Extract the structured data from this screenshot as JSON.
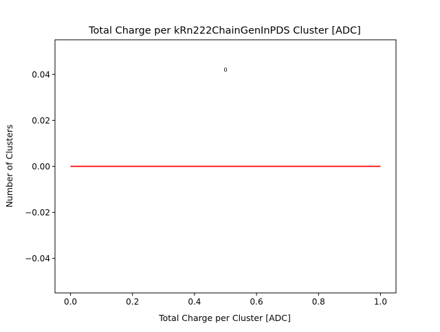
{
  "chart_data": {
    "type": "line",
    "title": "Total Charge per kRn222ChainGenInPDS Cluster [ADC]",
    "xlabel": "Total Charge per Cluster [ADC]",
    "ylabel": "Number of Clusters",
    "xlim": [
      -0.05,
      1.05
    ],
    "ylim": [
      -0.055,
      0.055
    ],
    "xticks": [
      0.0,
      0.2,
      0.4,
      0.6,
      0.8,
      1.0
    ],
    "xtick_labels": [
      "0.0",
      "0.2",
      "0.4",
      "0.6",
      "0.8",
      "1.0"
    ],
    "yticks": [
      -0.04,
      -0.02,
      0.0,
      0.02,
      0.04
    ],
    "ytick_labels": [
      "−0.04",
      "−0.02",
      "0.00",
      "0.02",
      "0.04"
    ],
    "grid": false,
    "series": [
      {
        "color": "#ff0000",
        "x": [
          0.0,
          1.0
        ],
        "y": [
          0.0,
          0.0
        ]
      }
    ],
    "annotations": [
      {
        "text": "0",
        "x": 0.5,
        "y": 0.042
      }
    ]
  }
}
